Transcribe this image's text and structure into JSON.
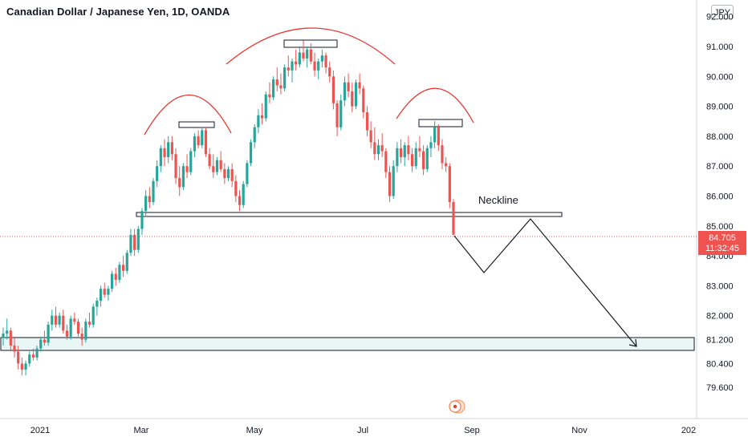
{
  "chart_title": "Canadian Dollar / Japanese Yen, 1D, OANDA",
  "currency_badge": "JPY",
  "colors": {
    "up": "#26a69a",
    "down": "#ef5350",
    "arc": "#e53935",
    "zone_fill": "#e8f7f6"
  },
  "annotations": {
    "neckline_label": "Neckline"
  },
  "current_price": {
    "value": "84.705",
    "countdown": "11:32:45"
  },
  "chart_data": {
    "type": "candlestick",
    "title": "Canadian Dollar / Japanese Yen, 1D, OANDA",
    "ylim": [
      79.2,
      92.2
    ],
    "y_ticks": [
      "92.000",
      "91.000",
      "90.000",
      "89.000",
      "88.000",
      "87.000",
      "86.000",
      "85.000",
      "84.000",
      "83.000",
      "82.000",
      "81.200",
      "80.400",
      "79.600"
    ],
    "x_ticks": [
      "2021",
      "Mar",
      "May",
      "Jul",
      "Sep",
      "Nov",
      "202"
    ],
    "grid": false,
    "candles": [
      [
        81.26,
        81.6,
        81.0,
        81.4
      ],
      [
        81.4,
        81.9,
        81.2,
        81.5
      ],
      [
        81.5,
        81.6,
        80.8,
        81.0
      ],
      [
        81.0,
        81.3,
        80.6,
        80.8
      ],
      [
        80.8,
        81.0,
        80.2,
        80.4
      ],
      [
        80.4,
        80.6,
        80.0,
        80.2
      ],
      [
        80.2,
        80.5,
        80.0,
        80.4
      ],
      [
        80.4,
        80.8,
        80.3,
        80.7
      ],
      [
        80.7,
        80.9,
        80.5,
        80.6
      ],
      [
        80.6,
        81.0,
        80.5,
        80.9
      ],
      [
        80.9,
        81.3,
        80.8,
        81.2
      ],
      [
        81.2,
        81.5,
        81.0,
        81.1
      ],
      [
        81.1,
        81.8,
        81.0,
        81.7
      ],
      [
        81.7,
        82.2,
        81.5,
        82.0
      ],
      [
        82.0,
        82.3,
        81.6,
        81.7
      ],
      [
        81.7,
        82.1,
        81.6,
        82.0
      ],
      [
        82.0,
        82.2,
        81.4,
        81.5
      ],
      [
        81.5,
        81.7,
        81.2,
        81.3
      ],
      [
        81.3,
        82.0,
        81.2,
        81.9
      ],
      [
        81.9,
        82.1,
        81.7,
        81.8
      ],
      [
        81.8,
        81.9,
        81.3,
        81.4
      ],
      [
        81.4,
        81.6,
        81.0,
        81.2
      ],
      [
        81.2,
        81.9,
        81.1,
        81.8
      ],
      [
        81.8,
        82.1,
        81.6,
        81.7
      ],
      [
        81.7,
        82.4,
        81.6,
        82.3
      ],
      [
        82.3,
        82.6,
        82.0,
        82.5
      ],
      [
        82.5,
        83.0,
        82.3,
        82.9
      ],
      [
        82.9,
        83.1,
        82.6,
        82.7
      ],
      [
        82.7,
        83.0,
        82.5,
        82.9
      ],
      [
        82.9,
        83.5,
        82.8,
        83.4
      ],
      [
        83.4,
        83.6,
        83.0,
        83.2
      ],
      [
        83.2,
        83.8,
        83.1,
        83.7
      ],
      [
        83.7,
        84.0,
        83.3,
        83.5
      ],
      [
        83.5,
        84.2,
        83.4,
        84.1
      ],
      [
        84.1,
        84.9,
        84.0,
        84.7
      ],
      [
        84.7,
        84.9,
        84.0,
        84.2
      ],
      [
        84.2,
        85.0,
        84.1,
        84.9
      ],
      [
        84.9,
        85.6,
        84.7,
        85.5
      ],
      [
        85.5,
        86.2,
        85.3,
        86.0
      ],
      [
        86.0,
        86.3,
        85.6,
        85.8
      ],
      [
        85.8,
        86.6,
        85.7,
        86.5
      ],
      [
        86.5,
        87.2,
        86.3,
        87.0
      ],
      [
        87.0,
        87.7,
        86.8,
        87.6
      ],
      [
        87.6,
        87.9,
        87.0,
        87.3
      ],
      [
        87.3,
        88.0,
        87.1,
        87.8
      ],
      [
        87.8,
        88.0,
        87.2,
        87.4
      ],
      [
        87.4,
        87.6,
        86.4,
        86.6
      ],
      [
        86.6,
        87.0,
        86.0,
        86.3
      ],
      [
        86.3,
        87.1,
        86.2,
        87.0
      ],
      [
        87.0,
        87.4,
        86.6,
        86.8
      ],
      [
        86.8,
        87.6,
        86.7,
        87.5
      ],
      [
        87.5,
        88.1,
        87.3,
        88.0
      ],
      [
        88.0,
        88.2,
        87.6,
        87.7
      ],
      [
        87.7,
        88.3,
        87.6,
        88.2
      ],
      [
        88.2,
        88.3,
        87.3,
        87.4
      ],
      [
        87.4,
        87.6,
        86.9,
        87.0
      ],
      [
        87.0,
        87.4,
        86.6,
        86.8
      ],
      [
        86.8,
        87.3,
        86.7,
        87.2
      ],
      [
        87.2,
        87.5,
        86.8,
        86.9
      ],
      [
        86.9,
        87.1,
        86.4,
        86.6
      ],
      [
        86.6,
        87.0,
        86.5,
        86.9
      ],
      [
        86.9,
        87.1,
        86.3,
        86.5
      ],
      [
        86.5,
        86.7,
        85.8,
        86.0
      ],
      [
        86.0,
        86.2,
        85.5,
        85.7
      ],
      [
        85.7,
        86.5,
        85.6,
        86.4
      ],
      [
        86.4,
        87.2,
        86.3,
        87.1
      ],
      [
        87.1,
        87.9,
        87.0,
        87.8
      ],
      [
        87.8,
        88.4,
        87.6,
        88.3
      ],
      [
        88.3,
        88.9,
        88.1,
        88.7
      ],
      [
        88.7,
        89.1,
        88.4,
        88.6
      ],
      [
        88.6,
        89.5,
        88.5,
        89.4
      ],
      [
        89.4,
        89.8,
        89.1,
        89.3
      ],
      [
        89.3,
        90.0,
        89.2,
        89.9
      ],
      [
        89.9,
        90.3,
        89.5,
        89.7
      ],
      [
        89.7,
        90.1,
        89.4,
        89.6
      ],
      [
        89.6,
        90.4,
        89.5,
        90.3
      ],
      [
        90.3,
        90.7,
        90.0,
        90.2
      ],
      [
        90.2,
        90.6,
        89.8,
        90.5
      ],
      [
        90.5,
        90.9,
        90.2,
        90.4
      ],
      [
        90.4,
        91.0,
        90.3,
        90.8
      ],
      [
        90.8,
        91.2,
        90.5,
        90.6
      ],
      [
        90.6,
        91.0,
        90.3,
        90.9
      ],
      [
        90.9,
        91.1,
        90.4,
        90.5
      ],
      [
        90.5,
        90.8,
        90.0,
        90.2
      ],
      [
        90.2,
        90.6,
        89.9,
        90.5
      ],
      [
        90.5,
        90.9,
        90.3,
        90.7
      ],
      [
        90.7,
        90.8,
        90.1,
        90.3
      ],
      [
        90.3,
        90.5,
        89.8,
        90.0
      ],
      [
        90.0,
        90.2,
        88.9,
        89.1
      ],
      [
        89.1,
        89.2,
        88.0,
        88.3
      ],
      [
        88.3,
        89.4,
        88.2,
        89.2
      ],
      [
        89.2,
        90.0,
        89.0,
        89.8
      ],
      [
        89.8,
        90.1,
        89.3,
        89.5
      ],
      [
        89.5,
        89.8,
        88.8,
        89.0
      ],
      [
        89.0,
        89.9,
        88.9,
        89.8
      ],
      [
        89.8,
        90.1,
        89.4,
        89.6
      ],
      [
        89.6,
        89.7,
        88.6,
        88.8
      ],
      [
        88.8,
        89.0,
        88.0,
        88.2
      ],
      [
        88.2,
        88.5,
        87.6,
        87.8
      ],
      [
        87.8,
        88.3,
        87.2,
        87.4
      ],
      [
        87.4,
        87.9,
        87.2,
        87.7
      ],
      [
        87.7,
        88.1,
        87.3,
        87.5
      ],
      [
        87.5,
        87.6,
        86.6,
        86.8
      ],
      [
        86.8,
        87.0,
        85.8,
        86.0
      ],
      [
        86.0,
        87.2,
        85.9,
        87.0
      ],
      [
        87.0,
        87.8,
        86.8,
        87.6
      ],
      [
        87.6,
        87.9,
        87.1,
        87.3
      ],
      [
        87.3,
        87.8,
        87.0,
        87.7
      ],
      [
        87.7,
        88.0,
        87.2,
        87.4
      ],
      [
        87.4,
        87.6,
        86.8,
        87.0
      ],
      [
        87.0,
        87.8,
        86.9,
        87.6
      ],
      [
        87.6,
        88.0,
        87.3,
        87.5
      ],
      [
        87.5,
        87.7,
        86.7,
        86.9
      ],
      [
        86.9,
        87.7,
        86.8,
        87.6
      ],
      [
        87.6,
        88.0,
        87.3,
        87.8
      ],
      [
        87.8,
        88.5,
        87.6,
        88.3
      ],
      [
        88.3,
        88.4,
        87.5,
        87.7
      ],
      [
        87.7,
        87.9,
        86.9,
        87.1
      ],
      [
        87.1,
        87.3,
        86.8,
        87.0
      ],
      [
        87.0,
        87.1,
        85.6,
        85.8
      ],
      [
        85.8,
        85.9,
        84.7,
        84.705
      ]
    ]
  }
}
